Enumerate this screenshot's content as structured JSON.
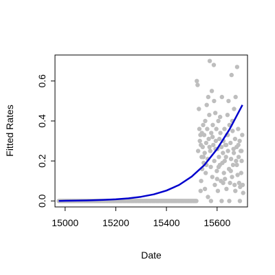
{
  "chart_data": {
    "type": "scatter",
    "title": "",
    "xlabel": "Date",
    "ylabel": "Fitted Rates",
    "xlim": [
      14960,
      15720
    ],
    "ylim": [
      -0.03,
      0.73
    ],
    "xticks": [
      15000,
      15200,
      15400,
      15600
    ],
    "yticks": [
      0.0,
      0.2,
      0.4,
      0.6
    ],
    "grid": false,
    "legend": "none",
    "colors": {
      "points": "#bebebe",
      "curve": "#0000cd",
      "axis": "#000000"
    },
    "points_zero": {
      "x_start": 14975,
      "x_end": 15520,
      "y": 0.0
    },
    "points": [
      [
        15520,
        0.6
      ],
      [
        15523,
        0.58
      ],
      [
        15528,
        0.46
      ],
      [
        15532,
        0.3
      ],
      [
        15534,
        0.33
      ],
      [
        15536,
        0.28
      ],
      [
        15537,
        0.1
      ],
      [
        15539,
        0.22
      ],
      [
        15541,
        0.16
      ],
      [
        15543,
        0.27
      ],
      [
        15545,
        0.38
      ],
      [
        15547,
        0.19
      ],
      [
        15549,
        0.33
      ],
      [
        15551,
        0.24
      ],
      [
        15553,
        0.4
      ],
      [
        15555,
        0.14
      ],
      [
        15557,
        0.29
      ],
      [
        15559,
        0.48
      ],
      [
        15561,
        0.36
      ],
      [
        15563,
        0.21
      ],
      [
        15565,
        0.52
      ],
      [
        15567,
        0.31
      ],
      [
        15569,
        0.43
      ],
      [
        15571,
        0.7
      ],
      [
        15573,
        0.25
      ],
      [
        15575,
        0.17
      ],
      [
        15577,
        0.34
      ],
      [
        15579,
        0.55
      ],
      [
        15581,
        0.12
      ],
      [
        15583,
        0.38
      ],
      [
        15585,
        0.28
      ],
      [
        15587,
        0.68
      ],
      [
        15589,
        0.2
      ],
      [
        15591,
        0.08
      ],
      [
        15593,
        0.44
      ],
      [
        15595,
        0.3
      ],
      [
        15597,
        0.36
      ],
      [
        15599,
        0.15
      ],
      [
        15601,
        0.26
      ],
      [
        15603,
        0.05
      ],
      [
        15605,
        0.4
      ],
      [
        15607,
        0.22
      ],
      [
        15609,
        0.31
      ],
      [
        15611,
        0.18
      ],
      [
        15613,
        0.34
      ],
      [
        15615,
        0.1
      ],
      [
        15617,
        0.27
      ],
      [
        15619,
        0.52
      ],
      [
        15621,
        0.19
      ],
      [
        15623,
        0.24
      ],
      [
        15625,
        0.3
      ],
      [
        15627,
        0.14
      ],
      [
        15629,
        0.36
      ],
      [
        15631,
        0.11
      ],
      [
        15633,
        0.28
      ],
      [
        15635,
        0.22
      ],
      [
        15637,
        0.06
      ],
      [
        15639,
        0.33
      ],
      [
        15641,
        0.43
      ],
      [
        15643,
        0.25
      ],
      [
        15645,
        0.5
      ],
      [
        15647,
        0.16
      ],
      [
        15649,
        0.38
      ],
      [
        15651,
        0.09
      ],
      [
        15653,
        0.29
      ],
      [
        15655,
        0.21
      ],
      [
        15657,
        0.63
      ],
      [
        15659,
        0.12
      ],
      [
        15661,
        0.35
      ],
      [
        15663,
        0.18
      ],
      [
        15665,
        0.26
      ],
      [
        15667,
        0.46
      ],
      [
        15669,
        0.08
      ],
      [
        15671,
        0.31
      ],
      [
        15673,
        0.52
      ],
      [
        15675,
        0.2
      ],
      [
        15677,
        0.27
      ],
      [
        15679,
        0.67
      ],
      [
        15681,
        0.13
      ],
      [
        15683,
        0.36
      ],
      [
        15685,
        0.22
      ],
      [
        15687,
        0.09
      ],
      [
        15689,
        0.3
      ],
      [
        15691,
        0.07
      ],
      [
        15693,
        0.25
      ],
      [
        15695,
        0.14
      ],
      [
        15697,
        0.2
      ],
      [
        15699,
        0.33
      ],
      [
        15701,
        0.08
      ],
      [
        15703,
        0.04
      ],
      [
        15525,
        0.25
      ],
      [
        15530,
        0.36
      ],
      [
        15535,
        0.05
      ],
      [
        15540,
        0.34
      ],
      [
        15546,
        0.22
      ],
      [
        15552,
        0.06
      ],
      [
        15558,
        0.18
      ],
      [
        15564,
        0.02
      ],
      [
        15570,
        0.27
      ],
      [
        15576,
        0.0
      ],
      [
        15582,
        0.32
      ],
      [
        15588,
        0.5
      ],
      [
        15594,
        0.26
      ],
      [
        15600,
        0.11
      ],
      [
        15606,
        0.17
      ],
      [
        15612,
        0.42
      ],
      [
        15618,
        0.0
      ],
      [
        15624,
        0.09
      ],
      [
        15630,
        0.2
      ],
      [
        15636,
        0.28
      ],
      [
        15642,
        0.33
      ],
      [
        15648,
        0.0
      ],
      [
        15654,
        0.15
      ],
      [
        15660,
        0.4
      ],
      [
        15666,
        0.24
      ],
      [
        15672,
        0.05
      ],
      [
        15678,
        0.18
      ],
      [
        15684,
        0.28
      ],
      [
        15690,
        0.0
      ],
      [
        15696,
        0.25
      ]
    ],
    "fitted_curve": [
      [
        14975,
        0.0
      ],
      [
        15000,
        0.001
      ],
      [
        15050,
        0.002
      ],
      [
        15100,
        0.003
      ],
      [
        15150,
        0.005
      ],
      [
        15200,
        0.008
      ],
      [
        15250,
        0.013
      ],
      [
        15300,
        0.021
      ],
      [
        15350,
        0.033
      ],
      [
        15400,
        0.052
      ],
      [
        15450,
        0.08
      ],
      [
        15500,
        0.122
      ],
      [
        15550,
        0.18
      ],
      [
        15600,
        0.26
      ],
      [
        15650,
        0.36
      ],
      [
        15700,
        0.48
      ]
    ]
  }
}
